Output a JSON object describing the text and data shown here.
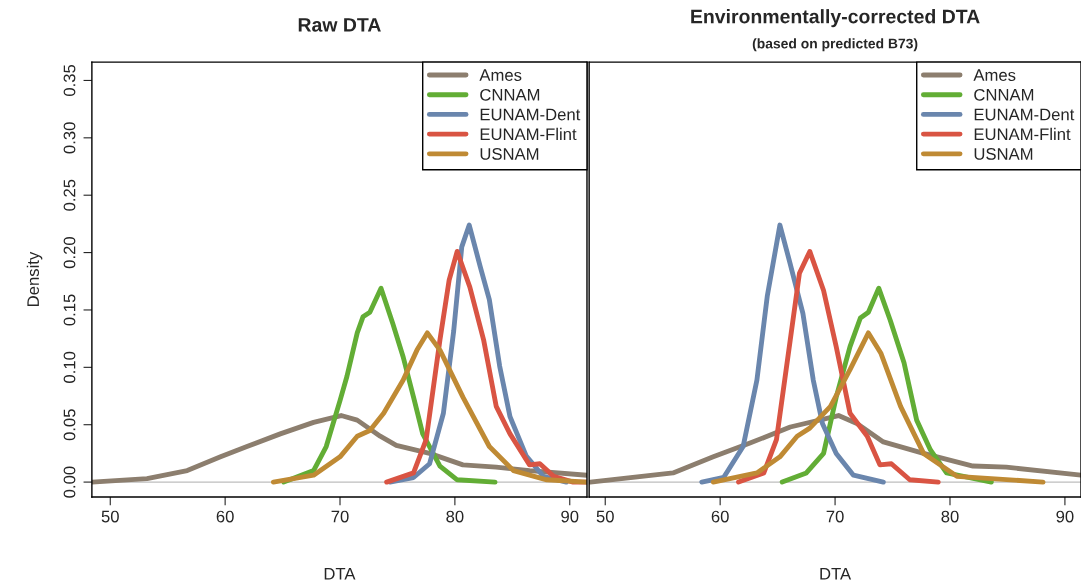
{
  "chart_data": [
    {
      "type": "line",
      "title": "Raw DTA",
      "xlabel": "DTA",
      "ylabel": "Density",
      "xlim": [
        48.4,
        91.5
      ],
      "ylim": [
        -0.013,
        0.366
      ],
      "xticks": [
        50,
        60,
        70,
        80,
        90
      ],
      "yticks": [
        {
          "value": 0,
          "label": "0.00"
        },
        0.05,
        {
          "value": 0.1,
          "label": "0.10"
        },
        0.15,
        {
          "value": 0.2,
          "label": "0.20"
        },
        0.25,
        {
          "value": 0.3,
          "label": "0.30"
        },
        0.35
      ],
      "legend": "top right",
      "grid": false,
      "ref_lines": [
        {
          "axis": "y",
          "value": 0,
          "color": "#bebebe"
        }
      ],
      "series": [
        {
          "name": "Ames",
          "color": "#8c7e6e",
          "x": [
            48.4,
            53.2,
            56.7,
            59.6,
            61.9,
            64.8,
            67.7,
            70.1,
            71.5,
            73.5,
            74.9,
            77.8,
            80.7,
            83.6,
            86.5,
            91.5
          ],
          "values": [
            0.0,
            0.003,
            0.01,
            0.022,
            0.031,
            0.042,
            0.052,
            0.058,
            0.054,
            0.04,
            0.032,
            0.025,
            0.015,
            0.013,
            0.01,
            0.006
          ]
        },
        {
          "name": "CNNAM",
          "color": "#62ad35",
          "x": [
            65.1,
            67.7,
            68.8,
            70.0,
            70.6,
            71.5,
            72.0,
            72.6,
            73.57,
            74.6,
            75.5,
            76.4,
            77.2,
            78.7,
            80.2,
            83.5
          ],
          "values": [
            0.0,
            0.01,
            0.031,
            0.071,
            0.092,
            0.13,
            0.144,
            0.148,
            0.169,
            0.138,
            0.109,
            0.074,
            0.042,
            0.014,
            0.002,
            0.0
          ]
        },
        {
          "name": "EUNAM-Dent",
          "color": "#6a86ad",
          "x": [
            74.35,
            76.4,
            77.8,
            79.0,
            79.9,
            80.6,
            81.25,
            82.2,
            83.0,
            83.9,
            84.8,
            86.2,
            87.7,
            89.7
          ],
          "values": [
            0.0,
            0.004,
            0.016,
            0.06,
            0.132,
            0.205,
            0.224,
            0.188,
            0.159,
            0.101,
            0.057,
            0.023,
            0.005,
            0.0
          ]
        },
        {
          "name": "EUNAM-Flint",
          "color": "#d95443",
          "x": [
            74.06,
            76.4,
            77.5,
            78.7,
            79.5,
            80.2,
            81.3,
            82.5,
            83.6,
            84.8,
            86.5,
            87.4,
            88.6,
            90.3,
            91.5
          ],
          "values": [
            0.0,
            0.008,
            0.037,
            0.124,
            0.176,
            0.201,
            0.17,
            0.124,
            0.066,
            0.042,
            0.015,
            0.016,
            0.005,
            0.0,
            0.0
          ]
        },
        {
          "name": "USNAM",
          "color": "#bf8a34",
          "x": [
            64.2,
            67.7,
            70.0,
            71.5,
            72.6,
            73.8,
            75.5,
            76.7,
            77.6,
            78.7,
            80.7,
            83.0,
            85.1,
            88.0,
            91.5
          ],
          "values": [
            0.0,
            0.006,
            0.022,
            0.04,
            0.045,
            0.06,
            0.089,
            0.115,
            0.13,
            0.115,
            0.074,
            0.031,
            0.01,
            0.002,
            0.0
          ]
        }
      ]
    },
    {
      "type": "line",
      "title": "Environmentally-corrected DTA",
      "subtitle": "(based on predicted B73)",
      "xlabel": "DTA",
      "xlim": [
        48.6,
        91.4
      ],
      "ylim": [
        -0.013,
        0.366
      ],
      "xticks": [
        50,
        60,
        70,
        80,
        90
      ],
      "tick_labels": "x",
      "legend": "top right",
      "grid": false,
      "ref_lines": [
        {
          "axis": "y",
          "value": 0,
          "color": "#bebebe"
        }
      ],
      "series": [
        {
          "name": "Ames",
          "color": "#8c7e6e",
          "x": [
            48.7,
            55.9,
            59.4,
            62.6,
            66.1,
            70.3,
            71.9,
            74.2,
            77.7,
            82.0,
            84.9,
            91.4
          ],
          "values": [
            0.0,
            0.008,
            0.022,
            0.034,
            0.048,
            0.058,
            0.051,
            0.035,
            0.025,
            0.014,
            0.013,
            0.006
          ]
        },
        {
          "name": "CNNAM",
          "color": "#62ad35",
          "x": [
            65.4,
            67.5,
            69.0,
            70.1,
            71.3,
            72.2,
            72.9,
            73.8,
            74.8,
            76.0,
            77.1,
            78.3,
            79.7,
            83.6
          ],
          "values": [
            0.0,
            0.008,
            0.025,
            0.074,
            0.118,
            0.143,
            0.148,
            0.169,
            0.141,
            0.104,
            0.054,
            0.028,
            0.008,
            0.0
          ]
        },
        {
          "name": "EUNAM-Dent",
          "color": "#6a86ad",
          "x": [
            58.4,
            60.3,
            62.0,
            63.2,
            64.1,
            65.2,
            66.1,
            67.2,
            68.1,
            68.9,
            70.1,
            71.6,
            74.2
          ],
          "values": [
            0.0,
            0.004,
            0.031,
            0.089,
            0.162,
            0.224,
            0.19,
            0.147,
            0.089,
            0.051,
            0.025,
            0.006,
            0.0
          ]
        },
        {
          "name": "EUNAM-Flint",
          "color": "#d95443",
          "x": [
            61.6,
            63.8,
            64.9,
            66.1,
            66.9,
            67.8,
            69.0,
            70.1,
            71.3,
            72.8,
            73.9,
            74.9,
            76.5,
            78.98
          ],
          "values": [
            0.0,
            0.008,
            0.037,
            0.124,
            0.182,
            0.201,
            0.167,
            0.118,
            0.06,
            0.04,
            0.015,
            0.016,
            0.002,
            0.0
          ]
        },
        {
          "name": "USNAM",
          "color": "#bf8a34",
          "x": [
            59.4,
            63.2,
            65.2,
            66.7,
            67.8,
            69.6,
            71.3,
            72.9,
            74.0,
            75.7,
            77.7,
            80.6,
            88.1
          ],
          "values": [
            0.0,
            0.008,
            0.022,
            0.04,
            0.047,
            0.066,
            0.098,
            0.13,
            0.112,
            0.066,
            0.025,
            0.005,
            0.0
          ]
        }
      ]
    }
  ]
}
